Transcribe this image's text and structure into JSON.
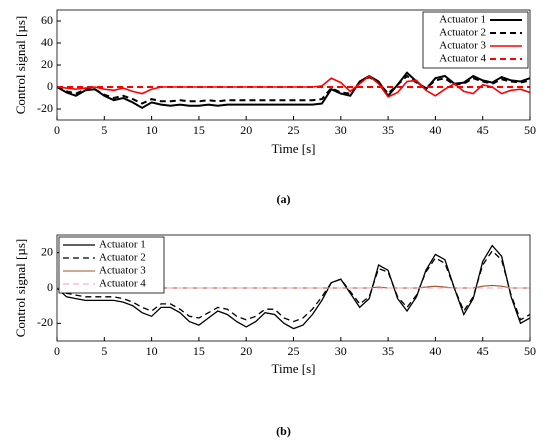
{
  "chart_data": [
    {
      "type": "line",
      "caption": "(a)",
      "xlabel": "Time [s]",
      "ylabel": "Control signal [µs]",
      "xlim": [
        0,
        50
      ],
      "xticks": [
        0,
        5,
        10,
        15,
        20,
        25,
        30,
        35,
        40,
        45,
        50
      ],
      "ylim": [
        -30,
        70
      ],
      "yticks": [
        -20,
        0,
        20,
        40,
        60
      ],
      "legend": "upper right",
      "x": [
        0,
        1,
        2,
        3,
        4,
        5,
        6,
        7,
        8,
        9,
        10,
        11,
        12,
        13,
        14,
        15,
        16,
        17,
        18,
        19,
        20,
        21,
        22,
        23,
        24,
        25,
        26,
        27,
        28,
        29,
        30,
        31,
        32,
        33,
        34,
        35,
        36,
        37,
        38,
        39,
        40,
        41,
        42,
        43,
        44,
        45,
        46,
        47,
        48,
        49,
        50
      ],
      "series": [
        {
          "name": "Actuator 1",
          "color": "#000000",
          "dash": false,
          "width": 2,
          "values": [
            0,
            -5,
            -8,
            -3,
            -2,
            -8,
            -12,
            -10,
            -14,
            -19,
            -14,
            -16,
            -17,
            -16,
            -17,
            -17,
            -16,
            -17,
            -16,
            -16,
            -16,
            -16,
            -16,
            -16,
            -16,
            -16,
            -16,
            -16,
            -15,
            -2,
            -6,
            -8,
            5,
            10,
            5,
            -8,
            2,
            13,
            5,
            -2,
            8,
            10,
            3,
            4,
            10,
            6,
            4,
            9,
            6,
            5,
            8
          ]
        },
        {
          "name": "Actuator 2",
          "color": "#000000",
          "dash": true,
          "width": 2,
          "values": [
            0,
            -4,
            -6,
            -2,
            -2,
            -7,
            -10,
            -8,
            -11,
            -15,
            -11,
            -13,
            -13,
            -12,
            -13,
            -13,
            -12,
            -13,
            -12,
            -12,
            -12,
            -12,
            -12,
            -12,
            -12,
            -12,
            -12,
            -12,
            -11,
            -1,
            -5,
            -6,
            4,
            9,
            4,
            -6,
            2,
            10,
            4,
            -1,
            6,
            8,
            2,
            3,
            8,
            5,
            3,
            7,
            5,
            4,
            6
          ]
        },
        {
          "name": "Actuator 3",
          "color": "#ff0000",
          "dash": false,
          "width": 1.6,
          "values": [
            0,
            -1,
            -2,
            -1,
            0,
            -2,
            -3,
            -1,
            -4,
            -6,
            -2,
            0,
            0,
            0,
            0,
            0,
            0,
            0,
            0,
            0,
            0,
            0,
            0,
            0,
            0,
            0,
            0,
            0,
            1,
            8,
            4,
            -4,
            3,
            10,
            3,
            -9,
            -5,
            5,
            6,
            -3,
            -8,
            -2,
            3,
            -4,
            -6,
            2,
            0,
            -6,
            -3,
            -2,
            -5
          ]
        },
        {
          "name": "Actuator 4",
          "color": "#ff0000",
          "dash": true,
          "width": 2,
          "values": [
            0,
            0,
            0,
            0,
            0,
            0,
            0,
            0,
            0,
            0,
            0,
            0,
            0,
            0,
            0,
            0,
            0,
            0,
            0,
            0,
            0,
            0,
            0,
            0,
            0,
            0,
            0,
            0,
            0,
            0,
            0,
            0,
            0,
            0,
            0,
            0,
            0,
            0,
            0,
            0,
            0,
            0,
            0,
            0,
            0,
            0,
            0,
            0,
            0,
            0,
            0
          ]
        }
      ]
    },
    {
      "type": "line",
      "caption": "(b)",
      "xlabel": "Time [s]",
      "ylabel": "Control signal [µs]",
      "xlim": [
        0,
        50
      ],
      "xticks": [
        0,
        5,
        10,
        15,
        20,
        25,
        30,
        35,
        40,
        45,
        50
      ],
      "ylim": [
        -30,
        30
      ],
      "yticks": [
        -20,
        0,
        20
      ],
      "legend": "upper left",
      "x": [
        0,
        1,
        2,
        3,
        4,
        5,
        6,
        7,
        8,
        9,
        10,
        11,
        12,
        13,
        14,
        15,
        16,
        17,
        18,
        19,
        20,
        21,
        22,
        23,
        24,
        25,
        26,
        27,
        28,
        29,
        30,
        31,
        32,
        33,
        34,
        35,
        36,
        37,
        38,
        39,
        40,
        41,
        42,
        43,
        44,
        45,
        46,
        47,
        48,
        49,
        50
      ],
      "series": [
        {
          "name": "Actuator 1",
          "color": "#000000",
          "dash": false,
          "width": 1.3,
          "values": [
            0,
            -5,
            -6,
            -7,
            -7,
            -7,
            -7,
            -8,
            -10,
            -14,
            -16,
            -11,
            -11,
            -14,
            -19,
            -21,
            -17,
            -13,
            -15,
            -19,
            -22,
            -19,
            -14,
            -15,
            -20,
            -23,
            -21,
            -15,
            -7,
            3,
            5,
            -3,
            -11,
            -6,
            13,
            10,
            -6,
            -13,
            -5,
            10,
            19,
            16,
            0,
            -15,
            -6,
            15,
            24,
            18,
            -5,
            -20,
            -17
          ]
        },
        {
          "name": "Actuator 2",
          "color": "#000000",
          "dash": true,
          "width": 1.3,
          "values": [
            0,
            -3,
            -4,
            -5,
            -5,
            -5,
            -5,
            -6,
            -8,
            -11,
            -13,
            -9,
            -9,
            -12,
            -16,
            -17,
            -14,
            -11,
            -12,
            -16,
            -18,
            -16,
            -12,
            -12,
            -17,
            -19,
            -17,
            -12,
            -5,
            3,
            5,
            -2,
            -9,
            -5,
            11,
            9,
            -5,
            -11,
            -4,
            9,
            17,
            14,
            0,
            -13,
            -5,
            13,
            21,
            16,
            -4,
            -18,
            -15
          ]
        },
        {
          "name": "Actuator 3",
          "color": "#a0522d",
          "dash": false,
          "width": 1.1,
          "values": [
            0,
            0,
            0,
            0,
            0,
            0,
            0,
            0,
            0,
            0,
            0,
            0,
            0,
            0,
            0,
            0,
            0,
            0,
            0,
            0,
            0,
            0,
            0,
            0,
            0,
            0,
            0,
            0,
            0,
            0,
            0,
            0,
            0,
            0,
            0.5,
            0,
            0,
            0,
            0,
            0.5,
            1,
            0.5,
            0,
            0,
            0,
            1,
            1.5,
            1,
            0,
            0,
            0
          ]
        },
        {
          "name": "Actuator 4",
          "color": "#f4a0c0",
          "dash": true,
          "width": 1.1,
          "values": [
            0,
            0,
            0,
            0,
            0,
            0,
            0,
            0,
            0,
            0,
            0,
            0,
            0,
            0,
            0,
            0,
            0,
            0,
            0,
            0,
            0,
            0,
            0,
            0,
            0,
            0,
            0,
            0,
            0,
            0,
            0,
            0,
            0,
            0,
            0,
            0,
            0,
            0,
            0,
            0,
            0,
            0,
            0,
            0,
            0,
            0,
            0,
            0,
            0,
            0,
            0
          ]
        }
      ]
    }
  ]
}
